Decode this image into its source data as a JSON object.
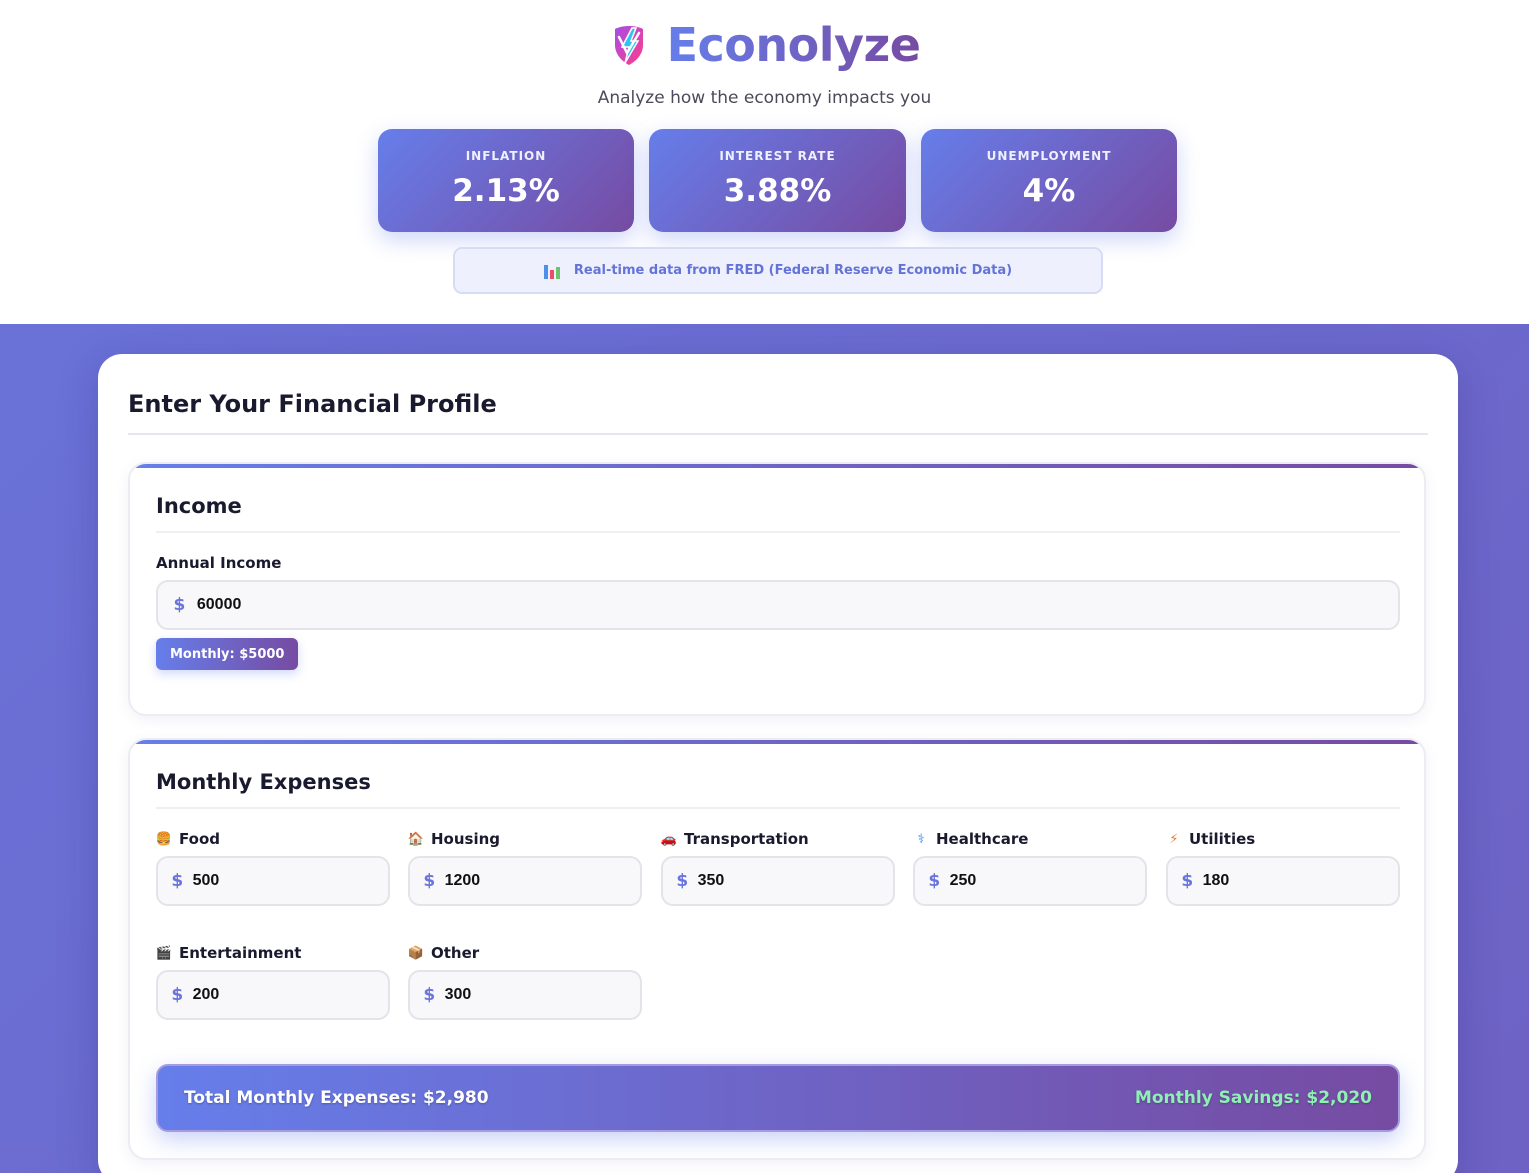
{
  "header": {
    "title": "Econolyze",
    "tagline": "Analyze how the economy impacts you",
    "logo_icon": "lightning-shield-logo",
    "stats": [
      {
        "label": "INFLATION",
        "value": "2.13%"
      },
      {
        "label": "INTEREST RATE",
        "value": "3.88%"
      },
      {
        "label": "UNEMPLOYMENT",
        "value": "4%"
      }
    ],
    "source_note": "Real-time data from FRED (Federal Reserve Economic Data)",
    "source_icon": "bar-chart-icon"
  },
  "profile": {
    "title": "Enter Your Financial Profile",
    "income": {
      "title": "Income",
      "annual_label": "Annual Income",
      "annual_value": "60000",
      "currency_symbol": "$",
      "monthly_badge": "Monthly: $5000"
    },
    "expenses": {
      "title": "Monthly Expenses",
      "items": [
        {
          "label": "Food",
          "value": "500",
          "icon": "burger-icon"
        },
        {
          "label": "Housing",
          "value": "1200",
          "icon": "house-icon"
        },
        {
          "label": "Transportation",
          "value": "350",
          "icon": "car-icon"
        },
        {
          "label": "Healthcare",
          "value": "250",
          "icon": "medical-icon"
        },
        {
          "label": "Utilities",
          "value": "180",
          "icon": "lightning-icon"
        },
        {
          "label": "Entertainment",
          "value": "200",
          "icon": "clapperboard-icon"
        },
        {
          "label": "Other",
          "value": "300",
          "icon": "package-icon"
        }
      ],
      "total_label": "Total Monthly Expenses: $2,980",
      "savings_label": "Monthly Savings: $2,020"
    }
  },
  "colors": {
    "accent_start": "#667eea",
    "accent_end": "#764ba2",
    "savings": "#8ef0b4"
  }
}
